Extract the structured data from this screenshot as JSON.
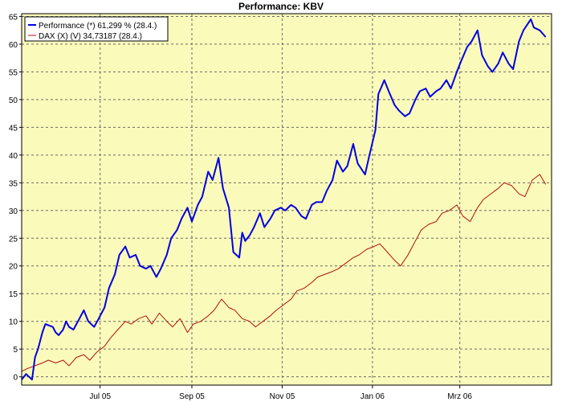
{
  "chart_data": {
    "type": "line",
    "title": "Performance: KBV",
    "xlabel": "",
    "ylabel": "",
    "ylim": [
      -1.5,
      65.5
    ],
    "yticks": [
      0,
      5,
      10,
      15,
      20,
      25,
      30,
      35,
      40,
      45,
      50,
      55,
      60,
      65
    ],
    "xticks": [
      {
        "label": "Jul 05",
        "date": "2005-07-01"
      },
      {
        "label": "Sep 05",
        "date": "2005-09-01"
      },
      {
        "label": "Nov 05",
        "date": "2005-11-01"
      },
      {
        "label": "Jan 06",
        "date": "2006-01-01"
      },
      {
        "label": "Mrz 06",
        "date": "2006-03-01"
      }
    ],
    "xlim": [
      "2005-05-09",
      "2006-05-02"
    ],
    "grid": true,
    "legend_position": "top-left",
    "background": "#fafaba",
    "series": [
      {
        "name": "Performance (*) 61,299 % (28.4.)",
        "color": "#0000e0",
        "x": [
          "2005-05-09",
          "2005-05-12",
          "2005-05-16",
          "2005-05-18",
          "2005-05-20",
          "2005-05-23",
          "2005-05-25",
          "2005-05-30",
          "2005-06-01",
          "2005-06-03",
          "2005-06-06",
          "2005-06-08",
          "2005-06-10",
          "2005-06-13",
          "2005-06-15",
          "2005-06-17",
          "2005-06-20",
          "2005-06-23",
          "2005-06-27",
          "2005-06-30",
          "2005-07-04",
          "2005-07-07",
          "2005-07-11",
          "2005-07-14",
          "2005-07-18",
          "2005-07-21",
          "2005-07-25",
          "2005-07-28",
          "2005-08-01",
          "2005-08-04",
          "2005-08-08",
          "2005-08-11",
          "2005-08-15",
          "2005-08-18",
          "2005-08-22",
          "2005-08-25",
          "2005-08-29",
          "2005-09-01",
          "2005-09-05",
          "2005-09-08",
          "2005-09-12",
          "2005-09-15",
          "2005-09-19",
          "2005-09-22",
          "2005-09-26",
          "2005-09-29",
          "2005-10-03",
          "2005-10-05",
          "2005-10-07",
          "2005-10-10",
          "2005-10-13",
          "2005-10-17",
          "2005-10-20",
          "2005-10-24",
          "2005-10-27",
          "2005-10-31",
          "2005-11-03",
          "2005-11-07",
          "2005-11-10",
          "2005-11-14",
          "2005-11-17",
          "2005-11-21",
          "2005-11-24",
          "2005-11-28",
          "2005-12-01",
          "2005-12-05",
          "2005-12-08",
          "2005-12-12",
          "2005-12-15",
          "2005-12-19",
          "2005-12-22",
          "2005-12-27",
          "2005-12-30",
          "2006-01-03",
          "2006-01-05",
          "2006-01-09",
          "2006-01-12",
          "2006-01-16",
          "2006-01-19",
          "2006-01-23",
          "2006-01-26",
          "2006-01-30",
          "2006-02-02",
          "2006-02-06",
          "2006-02-09",
          "2006-02-13",
          "2006-02-16",
          "2006-02-20",
          "2006-02-23",
          "2006-02-27",
          "2006-03-02",
          "2006-03-06",
          "2006-03-09",
          "2006-03-13",
          "2006-03-16",
          "2006-03-20",
          "2006-03-23",
          "2006-03-27",
          "2006-03-30",
          "2006-04-03",
          "2006-04-06",
          "2006-04-10",
          "2006-04-13",
          "2006-04-18",
          "2006-04-20",
          "2006-04-24",
          "2006-04-28"
        ],
        "values": [
          -0.5,
          0.5,
          -0.5,
          3.5,
          5.0,
          8.0,
          9.5,
          9.0,
          8.0,
          7.5,
          8.5,
          10.0,
          9.0,
          8.5,
          9.5,
          10.5,
          12.0,
          10.0,
          9.0,
          10.5,
          12.5,
          16.0,
          18.5,
          22.0,
          23.5,
          21.5,
          22.0,
          20.0,
          19.5,
          20.0,
          18.0,
          19.5,
          22.0,
          25.0,
          26.5,
          28.5,
          30.5,
          28.0,
          31.0,
          32.5,
          37.0,
          35.5,
          39.5,
          34.0,
          30.5,
          22.5,
          21.5,
          26.0,
          24.5,
          25.5,
          27.0,
          29.5,
          27.0,
          28.5,
          30.0,
          30.5,
          30.0,
          31.0,
          30.5,
          29.0,
          28.5,
          31.0,
          31.5,
          31.5,
          33.5,
          35.5,
          39.0,
          37.0,
          38.0,
          42.0,
          38.5,
          36.5,
          40.0,
          44.5,
          51.0,
          53.5,
          51.5,
          49.0,
          48.0,
          47.0,
          47.5,
          50.0,
          51.5,
          52.0,
          50.5,
          51.5,
          52.0,
          53.5,
          52.0,
          55.0,
          57.0,
          59.5,
          60.5,
          62.5,
          58.0,
          56.0,
          55.0,
          56.5,
          58.5,
          56.5,
          55.5,
          60.5,
          62.5,
          64.5,
          63.0,
          62.5,
          61.3
        ]
      },
      {
        "name": "DAX (X) (V) 34,73187 (28.4.)",
        "color": "#b01010",
        "x": [
          "2005-05-09",
          "2005-05-13",
          "2005-05-18",
          "2005-05-23",
          "2005-05-27",
          "2005-06-01",
          "2005-06-06",
          "2005-06-10",
          "2005-06-15",
          "2005-06-20",
          "2005-06-24",
          "2005-06-29",
          "2005-07-04",
          "2005-07-08",
          "2005-07-13",
          "2005-07-18",
          "2005-07-22",
          "2005-07-27",
          "2005-08-01",
          "2005-08-05",
          "2005-08-10",
          "2005-08-15",
          "2005-08-19",
          "2005-08-24",
          "2005-08-29",
          "2005-09-02",
          "2005-09-07",
          "2005-09-12",
          "2005-09-16",
          "2005-09-21",
          "2005-09-26",
          "2005-09-30",
          "2005-10-05",
          "2005-10-10",
          "2005-10-14",
          "2005-10-19",
          "2005-10-24",
          "2005-10-28",
          "2005-11-02",
          "2005-11-07",
          "2005-11-11",
          "2005-11-16",
          "2005-11-21",
          "2005-11-25",
          "2005-11-30",
          "2005-12-05",
          "2005-12-09",
          "2005-12-14",
          "2005-12-19",
          "2005-12-23",
          "2005-12-28",
          "2006-01-02",
          "2006-01-06",
          "2006-01-11",
          "2006-01-16",
          "2006-01-20",
          "2006-01-25",
          "2006-01-30",
          "2006-02-03",
          "2006-02-08",
          "2006-02-13",
          "2006-02-17",
          "2006-02-22",
          "2006-02-27",
          "2006-03-03",
          "2006-03-08",
          "2006-03-13",
          "2006-03-17",
          "2006-03-22",
          "2006-03-27",
          "2006-03-31",
          "2006-04-05",
          "2006-04-10",
          "2006-04-14",
          "2006-04-19",
          "2006-04-24",
          "2006-04-28"
        ],
        "values": [
          1.0,
          1.5,
          2.0,
          2.5,
          3.0,
          2.5,
          3.0,
          2.0,
          3.5,
          4.0,
          3.0,
          4.5,
          5.5,
          7.0,
          8.5,
          10.0,
          9.5,
          10.5,
          11.0,
          9.5,
          11.5,
          10.0,
          9.0,
          10.5,
          8.0,
          9.5,
          10.0,
          11.0,
          12.0,
          14.0,
          12.5,
          12.0,
          10.5,
          10.0,
          9.0,
          10.0,
          11.0,
          12.0,
          13.0,
          14.0,
          15.5,
          16.0,
          17.0,
          18.0,
          18.5,
          19.0,
          19.5,
          20.5,
          21.5,
          22.0,
          23.0,
          23.5,
          24.0,
          22.5,
          21.0,
          20.0,
          22.0,
          24.5,
          26.5,
          27.5,
          28.0,
          29.5,
          30.0,
          31.0,
          29.0,
          28.0,
          30.5,
          32.0,
          33.0,
          34.0,
          35.0,
          34.5,
          33.0,
          32.5,
          35.5,
          36.5,
          34.7
        ]
      }
    ]
  }
}
